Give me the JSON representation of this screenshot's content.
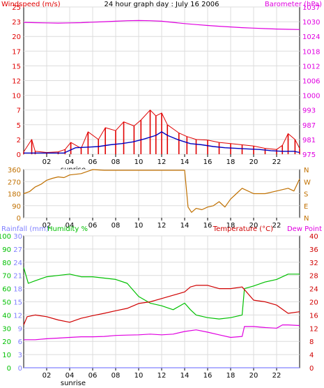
{
  "chart_data": [
    {
      "panel": "wind-barometer",
      "type": "line",
      "title": "24 hour graph day : July 16 2006",
      "left_axis_label": "Windspeed (m/s)",
      "right_axis_label": "Barometer (hPa)",
      "left_ticks": [
        "0",
        "2",
        "5",
        "7",
        "10",
        "12",
        "15",
        "17",
        "20",
        "23",
        "25"
      ],
      "right_ticks": [
        "975",
        "981",
        "987",
        "993",
        "1000",
        "1006",
        "1012",
        "1018",
        "1024",
        "1030",
        "1037"
      ],
      "ylim_left": [
        0,
        25
      ],
      "ylim_right": [
        975,
        1037
      ],
      "x_ticks": [
        "02",
        "04",
        "06",
        "08",
        "10",
        "12",
        "14",
        "16",
        "18",
        "20",
        "22"
      ],
      "x_range_hours": [
        0,
        24
      ],
      "annotation": "sunrise",
      "annotation_hour": 4.3,
      "grid": true,
      "colors": {
        "barometer": "#e000e0",
        "wind_gust": "#e00000",
        "wind_avg": "#0000c0",
        "axis_left": "#e00000",
        "axis_right": "#e000e0",
        "grid": "#d0d0d0"
      },
      "series": [
        {
          "name": "Barometer",
          "axis": "right",
          "x": [
            0,
            1,
            2,
            3,
            4,
            5,
            6,
            7,
            8,
            9,
            10,
            11,
            12,
            13,
            14,
            15,
            16,
            17,
            18,
            19,
            20,
            21,
            22,
            23,
            24
          ],
          "y": [
            1030.5,
            1030.4,
            1030.3,
            1030.2,
            1030.3,
            1030.4,
            1030.6,
            1030.8,
            1031,
            1031.2,
            1031.3,
            1031.2,
            1031,
            1030.5,
            1030,
            1029.6,
            1029.2,
            1028.9,
            1028.6,
            1028.3,
            1028.1,
            1027.9,
            1027.7,
            1027.6,
            1027.5
          ]
        },
        {
          "name": "Wind gust",
          "axis": "left",
          "x": [
            0,
            0.7,
            1,
            2,
            3,
            3.6,
            4.1,
            5,
            5.6,
            6.5,
            7.1,
            8,
            8.7,
            9.6,
            10.2,
            11,
            11.5,
            12,
            12.5,
            13.5,
            14.2,
            15,
            16,
            17,
            18,
            19,
            20,
            21,
            22,
            22.5,
            23,
            23.6,
            24
          ],
          "y": [
            0.4,
            2.5,
            0.5,
            0.3,
            0.4,
            0.8,
            2,
            1,
            3.8,
            2.5,
            4.5,
            4,
            5.5,
            4.8,
            5.8,
            7.5,
            6.5,
            7,
            5,
            3.6,
            3,
            2.5,
            2.4,
            2,
            1.8,
            1.6,
            1.4,
            1,
            0.8,
            1.5,
            3.5,
            2.5,
            1
          ]
        },
        {
          "name": "Wind average",
          "axis": "left",
          "x": [
            0,
            2,
            3.5,
            4.5,
            5.5,
            6.5,
            7.5,
            8.5,
            9.5,
            10.5,
            11.5,
            12,
            12.5,
            13.5,
            14.5,
            15.5,
            16.5,
            17.5,
            18.5,
            19.5,
            20.5,
            21.5,
            22.5,
            23.5,
            24
          ],
          "y": [
            0.2,
            0.2,
            0.2,
            1.1,
            1.2,
            1.3,
            1.6,
            1.8,
            2.1,
            2.6,
            3.2,
            3.8,
            3.2,
            2.4,
            1.8,
            1.6,
            1.3,
            1.1,
            1,
            0.9,
            0.8,
            0.6,
            0.5,
            0.5,
            0.3
          ]
        }
      ]
    },
    {
      "panel": "wind-direction",
      "type": "line",
      "left_ticks": [
        "0",
        "90",
        "180",
        "270",
        "360"
      ],
      "right_ticks": [
        "N",
        "E",
        "S",
        "W",
        "N"
      ],
      "ylim": [
        0,
        360
      ],
      "x_ticks": [
        "02",
        "04",
        "06",
        "08",
        "10",
        "12",
        "14",
        "16",
        "18",
        "20",
        "22"
      ],
      "x_range_hours": [
        0,
        24
      ],
      "colors": {
        "direction": "#c07000",
        "axis": "#c07000"
      },
      "series": [
        {
          "name": "Wind direction",
          "x": [
            0,
            0.5,
            1,
            1.5,
            2,
            2.5,
            3,
            3.5,
            4,
            5,
            6,
            7,
            8,
            9,
            10,
            11,
            12,
            13,
            14,
            14.3,
            14.6,
            15,
            15.5,
            16,
            16.5,
            17,
            17.5,
            18,
            18.5,
            19,
            20,
            21,
            22,
            23,
            23.5,
            24
          ],
          "y": [
            180,
            195,
            230,
            250,
            280,
            295,
            305,
            300,
            320,
            330,
            360,
            355,
            355,
            355,
            355,
            355,
            355,
            355,
            355,
            80,
            40,
            70,
            60,
            80,
            90,
            120,
            80,
            140,
            180,
            220,
            180,
            180,
            200,
            220,
            200,
            290
          ]
        }
      ]
    },
    {
      "panel": "humidity-temperature",
      "type": "line",
      "left_axis_label_rainfall": "Rainfall (mm)",
      "left_axis_label_humidity": "Humidity %",
      "right_axis_label_temperature": "Temperature (°C)",
      "right_axis_label_dewpoint": "Dew Point",
      "rainfall_ticks": [
        "0",
        "3",
        "6",
        "9",
        "12",
        "15",
        "18",
        "21",
        "24",
        "27",
        "30"
      ],
      "humidity_ticks": [
        "0",
        "10",
        "20",
        "30",
        "40",
        "50",
        "60",
        "70",
        "80",
        "90",
        "100"
      ],
      "temperature_ticks": [
        "0",
        "4",
        "8",
        "12",
        "16",
        "20",
        "24",
        "28",
        "32",
        "36",
        "40"
      ],
      "ylim_humidity": [
        0,
        100
      ],
      "ylim_temperature": [
        0,
        40
      ],
      "x_ticks": [
        "02",
        "04",
        "06",
        "08",
        "10",
        "12",
        "14",
        "16",
        "18",
        "20",
        "22"
      ],
      "x_range_hours": [
        0,
        24
      ],
      "annotation": "sunrise",
      "annotation_hour": 4.3,
      "colors": {
        "humidity": "#00c000",
        "temperature": "#d00000",
        "dewpoint": "#e000e0",
        "rainfall": "#8080ff",
        "axis_rain": "#8080ff",
        "axis_hum": "#00c000",
        "axis_temp": "#d00000"
      },
      "series": [
        {
          "name": "Humidity",
          "axis": "humidity",
          "x": [
            0,
            0.4,
            1,
            2,
            3,
            4,
            5,
            6,
            7,
            8,
            9,
            10,
            11,
            12,
            13,
            14,
            14.5,
            15,
            16,
            17,
            18,
            19,
            19.2,
            20,
            21,
            22,
            23,
            24
          ],
          "y": [
            76,
            64,
            66,
            69,
            70,
            71,
            69,
            69,
            68,
            67,
            64,
            54,
            49,
            47,
            44,
            49,
            44,
            40,
            38,
            37,
            38,
            40,
            60,
            62,
            65,
            67,
            71,
            71
          ]
        },
        {
          "name": "Temperature",
          "axis": "temperature",
          "x": [
            0,
            0.3,
            1,
            2,
            3,
            4,
            5,
            6,
            7,
            8,
            9,
            10,
            11,
            12,
            13,
            14,
            14.5,
            15,
            16,
            17,
            18,
            19,
            20,
            21,
            22,
            23,
            24
          ],
          "y": [
            13,
            15.5,
            16,
            15.5,
            14.5,
            13.8,
            15,
            15.8,
            16.5,
            17.3,
            18,
            19.5,
            20,
            21,
            22,
            23,
            24.5,
            25,
            25,
            24,
            24,
            24.5,
            20.5,
            20,
            19,
            16.5,
            17
          ]
        },
        {
          "name": "Dew Point",
          "axis": "temperature",
          "x": [
            0,
            1,
            2,
            3,
            4,
            5,
            6,
            7,
            8,
            9,
            10,
            11,
            12,
            13,
            14,
            15,
            16,
            17,
            18,
            19,
            19.2,
            20,
            21,
            22,
            22.5,
            23,
            24
          ],
          "y": [
            8.5,
            8.5,
            8.8,
            9,
            9.2,
            9.4,
            9.4,
            9.5,
            9.8,
            9.9,
            10,
            10.2,
            10,
            10.2,
            11,
            11.5,
            10.8,
            10,
            9.2,
            9.5,
            12.5,
            12.5,
            12.2,
            12,
            13,
            13,
            12.8
          ]
        },
        {
          "name": "Rainfall",
          "axis": "rainfall",
          "x": [
            0,
            24
          ],
          "y": [
            0,
            0
          ]
        }
      ]
    }
  ]
}
